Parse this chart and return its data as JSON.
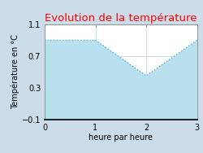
{
  "title": "Evolution de la température",
  "title_color": "#ff0000",
  "xlabel": "heure par heure",
  "ylabel": "Température en °C",
  "x": [
    0,
    1,
    2,
    3
  ],
  "y": [
    0.9,
    0.9,
    0.45,
    0.9
  ],
  "xlim": [
    0,
    3
  ],
  "ylim": [
    -0.1,
    1.1
  ],
  "yticks": [
    -0.1,
    0.3,
    0.7,
    1.1
  ],
  "xticks": [
    0,
    1,
    2,
    3
  ],
  "line_color": "#5ab8d4",
  "fill_color": "#b8e0ef",
  "plot_bg_color": "#ffffff",
  "background_color": "#ccdce8",
  "grid_color": "#d0dde6",
  "grid_linewidth": 0.8,
  "line_width": 1.0,
  "title_fontsize": 9.5,
  "label_fontsize": 7,
  "tick_fontsize": 7
}
